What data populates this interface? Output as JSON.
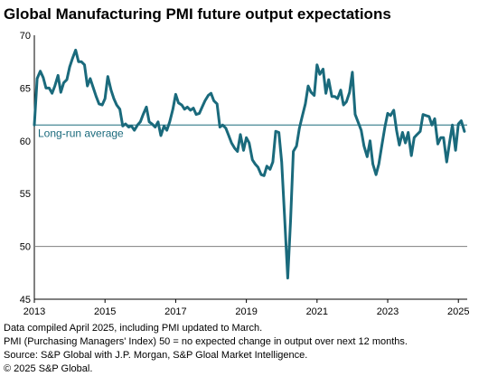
{
  "chart_data": {
    "type": "line",
    "title": "Global Manufacturing PMI future output expectations",
    "ylim": [
      45,
      70
    ],
    "yticks": [
      45,
      50,
      55,
      60,
      65,
      70
    ],
    "xlim": [
      2013.0,
      2025.25
    ],
    "xticks": [
      2013,
      2015,
      2017,
      2019,
      2021,
      2023,
      2025
    ],
    "xtick_labels": [
      "2013",
      "2015",
      "2017",
      "2019",
      "2021",
      "2023",
      "2025"
    ],
    "reference_lines": [
      {
        "value": 61.5,
        "label": "Long-run average",
        "color": "#1a6a7c"
      },
      {
        "value": 50,
        "label": "",
        "color": "#808080"
      }
    ],
    "series": [
      {
        "name": "",
        "color": "#1a6a7c",
        "values": [
          [
            2013.0,
            61.5
          ],
          [
            2013.08,
            65.9
          ],
          [
            2013.17,
            66.6
          ],
          [
            2013.25,
            66.0
          ],
          [
            2013.33,
            65.0
          ],
          [
            2013.42,
            65.0
          ],
          [
            2013.5,
            64.5
          ],
          [
            2013.58,
            65.2
          ],
          [
            2013.67,
            66.2
          ],
          [
            2013.75,
            64.6
          ],
          [
            2013.83,
            65.5
          ],
          [
            2013.92,
            65.8
          ],
          [
            2014.0,
            67.0
          ],
          [
            2014.08,
            67.8
          ],
          [
            2014.17,
            68.6
          ],
          [
            2014.25,
            67.5
          ],
          [
            2014.33,
            67.5
          ],
          [
            2014.42,
            67.2
          ],
          [
            2014.5,
            65.2
          ],
          [
            2014.58,
            65.9
          ],
          [
            2014.67,
            65.0
          ],
          [
            2014.75,
            64.2
          ],
          [
            2014.83,
            63.5
          ],
          [
            2014.92,
            63.4
          ],
          [
            2015.0,
            64.0
          ],
          [
            2015.08,
            66.1
          ],
          [
            2015.17,
            64.8
          ],
          [
            2015.25,
            64.0
          ],
          [
            2015.33,
            63.4
          ],
          [
            2015.42,
            63.0
          ],
          [
            2015.5,
            61.4
          ],
          [
            2015.58,
            61.6
          ],
          [
            2015.67,
            61.3
          ],
          [
            2015.75,
            61.4
          ],
          [
            2015.83,
            61.0
          ],
          [
            2015.92,
            61.5
          ],
          [
            2016.0,
            61.8
          ],
          [
            2016.08,
            62.5
          ],
          [
            2016.17,
            63.2
          ],
          [
            2016.25,
            61.8
          ],
          [
            2016.33,
            61.6
          ],
          [
            2016.42,
            61.3
          ],
          [
            2016.5,
            61.8
          ],
          [
            2016.58,
            60.5
          ],
          [
            2016.67,
            61.4
          ],
          [
            2016.75,
            61.0
          ],
          [
            2016.83,
            61.8
          ],
          [
            2016.92,
            63.0
          ],
          [
            2017.0,
            64.4
          ],
          [
            2017.08,
            63.6
          ],
          [
            2017.17,
            63.4
          ],
          [
            2017.25,
            63.0
          ],
          [
            2017.33,
            63.2
          ],
          [
            2017.42,
            62.9
          ],
          [
            2017.5,
            63.1
          ],
          [
            2017.58,
            62.5
          ],
          [
            2017.67,
            62.6
          ],
          [
            2017.75,
            63.2
          ],
          [
            2017.83,
            63.8
          ],
          [
            2017.92,
            64.3
          ],
          [
            2018.0,
            64.5
          ],
          [
            2018.08,
            63.8
          ],
          [
            2018.17,
            63.5
          ],
          [
            2018.25,
            61.3
          ],
          [
            2018.33,
            61.5
          ],
          [
            2018.42,
            61.2
          ],
          [
            2018.5,
            60.5
          ],
          [
            2018.58,
            59.8
          ],
          [
            2018.67,
            59.3
          ],
          [
            2018.75,
            59.0
          ],
          [
            2018.83,
            60.6
          ],
          [
            2018.92,
            59.1
          ],
          [
            2019.0,
            60.3
          ],
          [
            2019.08,
            59.8
          ],
          [
            2019.17,
            58.2
          ],
          [
            2019.25,
            57.8
          ],
          [
            2019.33,
            57.5
          ],
          [
            2019.42,
            56.8
          ],
          [
            2019.5,
            56.7
          ],
          [
            2019.58,
            57.6
          ],
          [
            2019.67,
            57.3
          ],
          [
            2019.75,
            58.0
          ],
          [
            2019.83,
            60.9
          ],
          [
            2019.92,
            60.8
          ],
          [
            2020.0,
            58.0
          ],
          [
            2020.08,
            53.0
          ],
          [
            2020.17,
            47.0
          ],
          [
            2020.25,
            52.4
          ],
          [
            2020.33,
            59.0
          ],
          [
            2020.42,
            59.5
          ],
          [
            2020.5,
            61.2
          ],
          [
            2020.58,
            62.3
          ],
          [
            2020.67,
            63.5
          ],
          [
            2020.75,
            65.2
          ],
          [
            2020.83,
            64.6
          ],
          [
            2020.92,
            64.3
          ],
          [
            2021.0,
            67.2
          ],
          [
            2021.08,
            66.3
          ],
          [
            2021.17,
            66.8
          ],
          [
            2021.25,
            64.5
          ],
          [
            2021.33,
            65.8
          ],
          [
            2021.42,
            64.2
          ],
          [
            2021.5,
            64.2
          ],
          [
            2021.58,
            64.0
          ],
          [
            2021.67,
            64.8
          ],
          [
            2021.75,
            63.4
          ],
          [
            2021.83,
            63.7
          ],
          [
            2021.92,
            64.6
          ],
          [
            2022.0,
            66.5
          ],
          [
            2022.08,
            62.5
          ],
          [
            2022.17,
            61.7
          ],
          [
            2022.25,
            61.0
          ],
          [
            2022.33,
            59.5
          ],
          [
            2022.42,
            58.5
          ],
          [
            2022.5,
            60.0
          ],
          [
            2022.58,
            57.8
          ],
          [
            2022.67,
            56.8
          ],
          [
            2022.75,
            57.8
          ],
          [
            2022.83,
            59.5
          ],
          [
            2022.92,
            61.3
          ],
          [
            2023.0,
            62.6
          ],
          [
            2023.08,
            62.4
          ],
          [
            2023.17,
            62.9
          ],
          [
            2023.25,
            61.0
          ],
          [
            2023.33,
            59.6
          ],
          [
            2023.42,
            60.8
          ],
          [
            2023.5,
            59.8
          ],
          [
            2023.58,
            60.8
          ],
          [
            2023.67,
            58.6
          ],
          [
            2023.75,
            60.3
          ],
          [
            2023.83,
            60.6
          ],
          [
            2023.92,
            60.9
          ],
          [
            2024.0,
            62.5
          ],
          [
            2024.08,
            62.4
          ],
          [
            2024.17,
            62.3
          ],
          [
            2024.25,
            61.5
          ],
          [
            2024.33,
            62.1
          ],
          [
            2024.42,
            59.7
          ],
          [
            2024.5,
            60.3
          ],
          [
            2024.58,
            60.3
          ],
          [
            2024.67,
            58.0
          ],
          [
            2024.75,
            59.8
          ],
          [
            2024.83,
            61.5
          ],
          [
            2024.92,
            59.1
          ],
          [
            2025.0,
            61.6
          ],
          [
            2025.08,
            61.9
          ],
          [
            2025.17,
            60.9
          ]
        ]
      }
    ]
  },
  "footnotes": [
    "Data compiled April 2025, including PMI updated to March.",
    "PMI (Purchasing Managers' Index) 50 = no expected change in output over next 12 months.",
    "Source: S&P Global with J.P. Morgan, S&P Gloal Market Intelligence.",
    "© 2025 S&P Global."
  ]
}
